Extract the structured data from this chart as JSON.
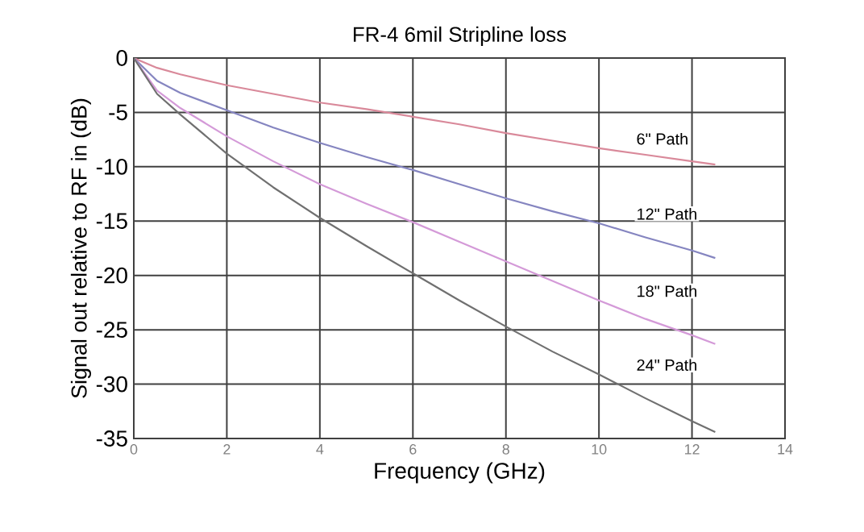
{
  "chart_data": {
    "type": "line",
    "title": "FR-4 6mil Stripline loss",
    "xlabel": "Frequency (GHz)",
    "ylabel": "Signal out relative to RF in (dB)",
    "x": [
      0,
      0.5,
      1,
      2,
      3,
      4,
      5,
      6,
      7,
      8,
      9,
      10,
      11,
      12,
      12.5
    ],
    "series": [
      {
        "name": "6\" Path",
        "color": "#d9899a",
        "values": [
          0,
          -0.9,
          -1.5,
          -2.5,
          -3.3,
          -4.1,
          -4.7,
          -5.4,
          -6.1,
          -6.9,
          -7.6,
          -8.3,
          -8.9,
          -9.5,
          -9.8
        ]
      },
      {
        "name": "12\" Path",
        "color": "#8585c0",
        "values": [
          0,
          -2.1,
          -3.2,
          -4.8,
          -6.4,
          -7.8,
          -9.1,
          -10.3,
          -11.6,
          -12.9,
          -14.1,
          -15.2,
          -16.5,
          -17.7,
          -18.4
        ]
      },
      {
        "name": "18\" Path",
        "color": "#d49ad8",
        "values": [
          0,
          -3.0,
          -4.6,
          -7.2,
          -9.5,
          -11.6,
          -13.4,
          -15.1,
          -16.9,
          -18.7,
          -20.5,
          -22.3,
          -24.0,
          -25.5,
          -26.3
        ]
      },
      {
        "name": "24\" Path",
        "color": "#707070",
        "values": [
          0,
          -3.3,
          -5.2,
          -8.8,
          -11.9,
          -14.7,
          -17.3,
          -19.8,
          -22.3,
          -24.7,
          -27.0,
          -29.1,
          -31.3,
          -33.4,
          -34.4
        ]
      }
    ],
    "xlim": [
      0,
      14
    ],
    "ylim": [
      -35,
      0
    ],
    "xticks": [
      0,
      2,
      4,
      6,
      8,
      10,
      12,
      14
    ],
    "yticks": [
      -35,
      -30,
      -25,
      -20,
      -15,
      -10,
      -5,
      0
    ],
    "grid": true,
    "marker": "none",
    "line_style": "solid"
  }
}
